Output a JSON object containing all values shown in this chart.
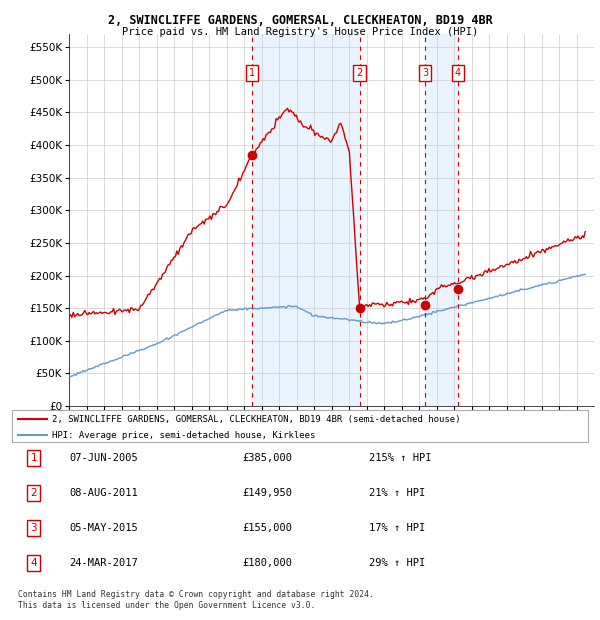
{
  "title1": "2, SWINCLIFFE GARDENS, GOMERSAL, CLECKHEATON, BD19 4BR",
  "title2": "Price paid vs. HM Land Registry's House Price Index (HPI)",
  "ylabel_ticks": [
    "£0",
    "£50K",
    "£100K",
    "£150K",
    "£200K",
    "£250K",
    "£300K",
    "£350K",
    "£400K",
    "£450K",
    "£500K",
    "£550K"
  ],
  "ylabel_values": [
    0,
    50000,
    100000,
    150000,
    200000,
    250000,
    300000,
    350000,
    400000,
    450000,
    500000,
    550000
  ],
  "xmin": 1995.0,
  "xmax": 2025.0,
  "ymin": 0,
  "ymax": 570000,
  "sale_points": [
    {
      "date_dec": 2005.44,
      "price": 385000,
      "label": "1"
    },
    {
      "date_dec": 2011.6,
      "price": 149950,
      "label": "2"
    },
    {
      "date_dec": 2015.34,
      "price": 155000,
      "label": "3"
    },
    {
      "date_dec": 2017.23,
      "price": 180000,
      "label": "4"
    }
  ],
  "legend_red": "2, SWINCLIFFE GARDENS, GOMERSAL, CLECKHEATON, BD19 4BR (semi-detached house)",
  "legend_blue": "HPI: Average price, semi-detached house, Kirklees",
  "table_rows": [
    {
      "num": "1",
      "date": "07-JUN-2005",
      "price": "£385,000",
      "hpi": "215% ↑ HPI"
    },
    {
      "num": "2",
      "date": "08-AUG-2011",
      "price": "£149,950",
      "hpi": "21% ↑ HPI"
    },
    {
      "num": "3",
      "date": "05-MAY-2015",
      "price": "£155,000",
      "hpi": "17% ↑ HPI"
    },
    {
      "num": "4",
      "date": "24-MAR-2017",
      "price": "£180,000",
      "hpi": "29% ↑ HPI"
    }
  ],
  "footnote": "Contains HM Land Registry data © Crown copyright and database right 2024.\nThis data is licensed under the Open Government Licence v3.0.",
  "background_fill": "#ddeeff",
  "grid_color": "#cccccc",
  "red_line_color": "#cc0000",
  "blue_line_color": "#6699cc",
  "sale_marker_color": "#cc0000"
}
